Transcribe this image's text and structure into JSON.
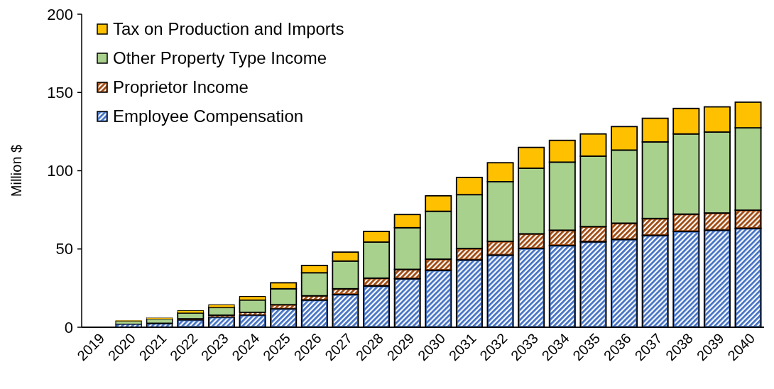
{
  "chart_data": {
    "type": "bar",
    "stacked": true,
    "ylabel": "Million $",
    "legend": "top left",
    "categories": [
      "2019",
      "2020",
      "2021",
      "2022",
      "2023",
      "2024",
      "2025",
      "2026",
      "2027",
      "2028",
      "2029",
      "2030",
      "2031",
      "2032",
      "2033",
      "2034",
      "2035",
      "2036",
      "2037",
      "2038",
      "2039",
      "2040"
    ],
    "ylim": [
      0,
      200
    ],
    "yticks": [
      0,
      50,
      100,
      150,
      200
    ],
    "grid": false,
    "series": [
      {
        "name": "Employee Compensation",
        "color": "#4472c4",
        "values": [
          0,
          2.0,
          2.3,
          4.7,
          6.5,
          7.8,
          11.8,
          17.4,
          20.9,
          26.4,
          31.0,
          36.4,
          43.0,
          46.1,
          50.3,
          52.2,
          54.6,
          56.1,
          58.7,
          61.2,
          62.0,
          63.2
        ]
      },
      {
        "name": "Proprietor Income",
        "color": "#9e480e",
        "values": [
          0,
          null,
          0.3,
          0.7,
          1.2,
          1.7,
          2.6,
          2.7,
          3.7,
          5.0,
          6.0,
          7.1,
          7.3,
          8.8,
          9.4,
          9.8,
          9.7,
          10.4,
          10.8,
          11.1,
          11.0,
          11.6
        ]
      },
      {
        "name": "Other Property Type Income",
        "color": "#a9d18e",
        "values": [
          0,
          1.9,
          2.7,
          3.7,
          4.9,
          7.9,
          10.2,
          14.7,
          17.7,
          23.0,
          26.6,
          30.6,
          34.4,
          38.1,
          41.9,
          43.5,
          45.0,
          46.7,
          48.9,
          51.2,
          51.7,
          52.6
        ]
      },
      {
        "name": "Tax on Production and Imports",
        "color": "#ffc000",
        "values": [
          0,
          0.5,
          0.7,
          1.6,
          1.8,
          2.3,
          3.8,
          4.7,
          5.7,
          6.8,
          8.4,
          9.9,
          11.0,
          12.1,
          13.3,
          13.9,
          14.2,
          15.0,
          15.1,
          16.3,
          16.1,
          16.4
        ]
      }
    ]
  }
}
